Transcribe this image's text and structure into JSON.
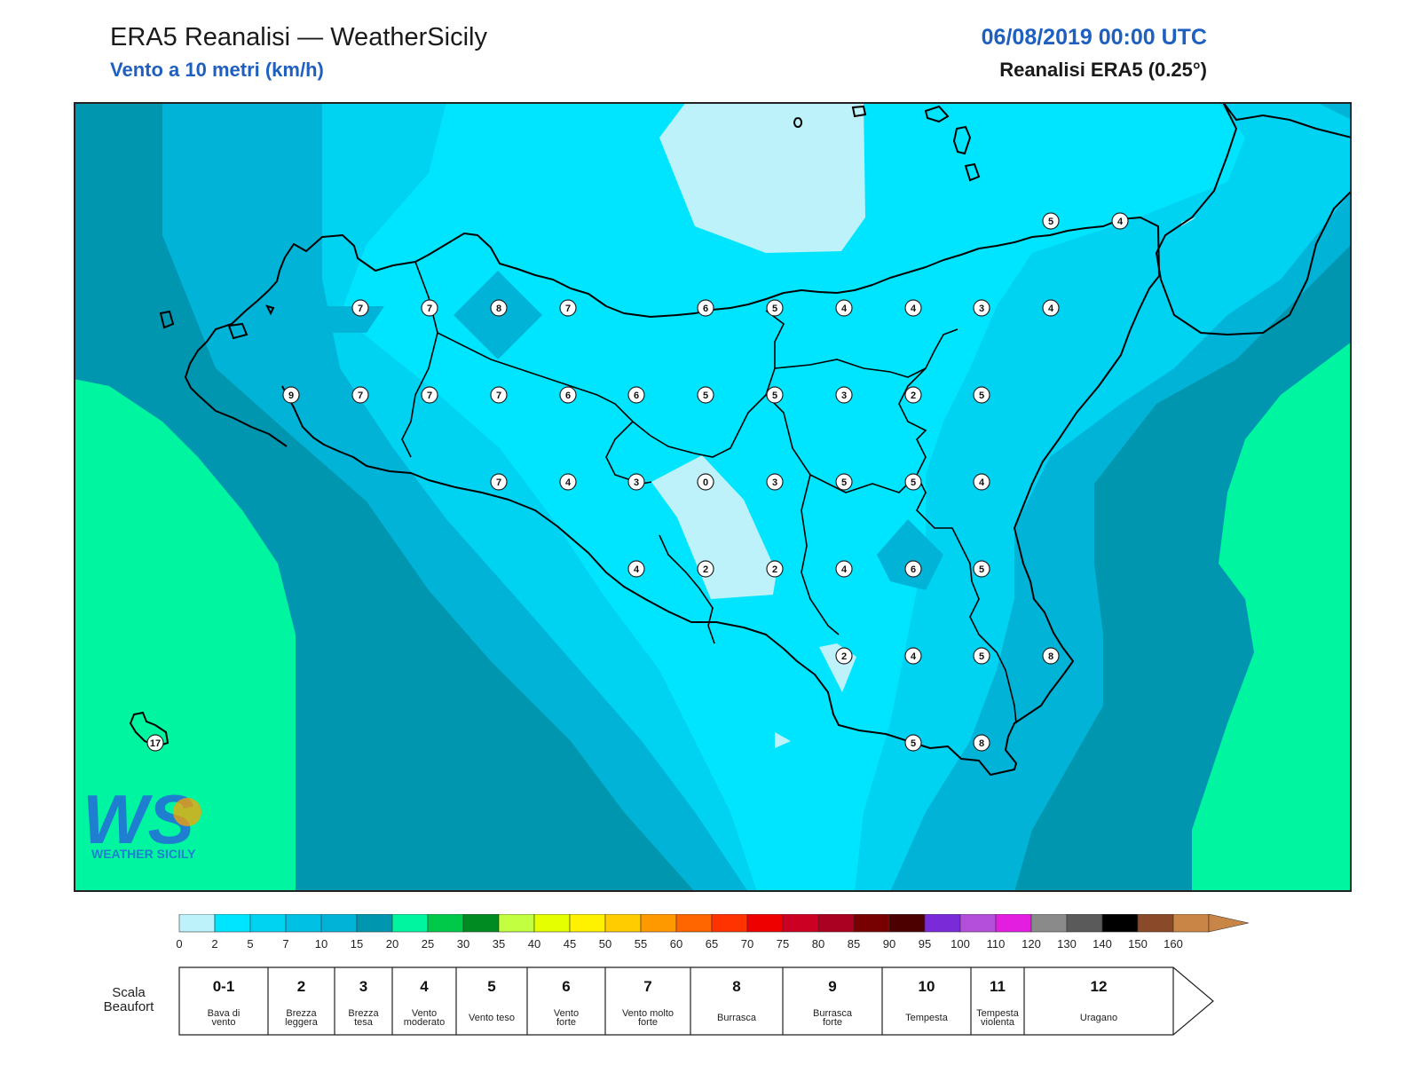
{
  "header": {
    "title": "ERA5 Reanalisi — WeatherSicily",
    "subtitle": "Vento a 10 metri (km/h)",
    "datetime": "06/08/2019 00:00 UTC",
    "source": "Reanalisi ERA5 (0.25°)"
  },
  "map": {
    "field": "wind speed 10m",
    "units": "km/h",
    "bands": [
      {
        "range": "0-2",
        "color": "#bdf2fb"
      },
      {
        "range": "2-5",
        "color": "#00e5ff"
      },
      {
        "range": "5-7",
        "color": "#00d2f2"
      },
      {
        "range": "7-10",
        "color": "#00b3d7"
      },
      {
        "range": "10-15",
        "color": "#0096b0"
      },
      {
        "range": "15-20",
        "color": "#00f5a0"
      }
    ],
    "station_values": [
      "5",
      "4",
      "7",
      "7",
      "8",
      "7",
      "6",
      "5",
      "4",
      "4",
      "3",
      "4",
      "9",
      "7",
      "7",
      "7",
      "6",
      "6",
      "5",
      "5",
      "3",
      "2",
      "5",
      "7",
      "4",
      "3",
      "0",
      "3",
      "5",
      "5",
      "4",
      "4",
      "2",
      "2",
      "4",
      "6",
      "5",
      "2",
      "4",
      "5",
      "8",
      "5",
      "8",
      "17"
    ],
    "logo": {
      "main": "WS",
      "caption": "WEATHER SICILY"
    }
  },
  "colorbar": {
    "colors": [
      "#bdf2fb",
      "#00e5ff",
      "#00d2f2",
      "#00c0e4",
      "#00b3d7",
      "#0096b0",
      "#00f5a0",
      "#00c94a",
      "#008a22",
      "#c2ff40",
      "#e6ff00",
      "#fff200",
      "#ffcc00",
      "#ff9900",
      "#ff6600",
      "#ff3300",
      "#ee0000",
      "#cc0022",
      "#aa0022",
      "#770000",
      "#4d0000",
      "#7a2ad6",
      "#b44fdc",
      "#e31ee0",
      "#8a8a8a",
      "#5a5a5a",
      "#000000",
      "#8a4a2a",
      "#c98545"
    ],
    "ticks": [
      "0",
      "2",
      "5",
      "7",
      "10",
      "15",
      "20",
      "25",
      "30",
      "35",
      "40",
      "45",
      "50",
      "55",
      "60",
      "65",
      "70",
      "75",
      "80",
      "85",
      "90",
      "95",
      "100",
      "110",
      "120",
      "130",
      "140",
      "150",
      "160"
    ],
    "arrow_color": "#c98545"
  },
  "beaufort": {
    "label_line1": "Scala",
    "label_line2": "Beaufort",
    "cells": [
      {
        "num": "0-1",
        "l1": "Bava di",
        "l2": "vento"
      },
      {
        "num": "2",
        "l1": "Brezza",
        "l2": "leggera"
      },
      {
        "num": "3",
        "l1": "Brezza",
        "l2": "tesa"
      },
      {
        "num": "4",
        "l1": "Vento",
        "l2": "moderato"
      },
      {
        "num": "5",
        "l1": "Vento teso",
        "l2": ""
      },
      {
        "num": "6",
        "l1": "Vento",
        "l2": "forte"
      },
      {
        "num": "7",
        "l1": "Vento molto",
        "l2": "forte"
      },
      {
        "num": "8",
        "l1": "Burrasca",
        "l2": ""
      },
      {
        "num": "9",
        "l1": "Burrasca",
        "l2": "forte"
      },
      {
        "num": "10",
        "l1": "Tempesta",
        "l2": ""
      },
      {
        "num": "11",
        "l1": "Tempesta",
        "l2": "violenta"
      },
      {
        "num": "12",
        "l1": "Uragano",
        "l2": ""
      }
    ]
  }
}
